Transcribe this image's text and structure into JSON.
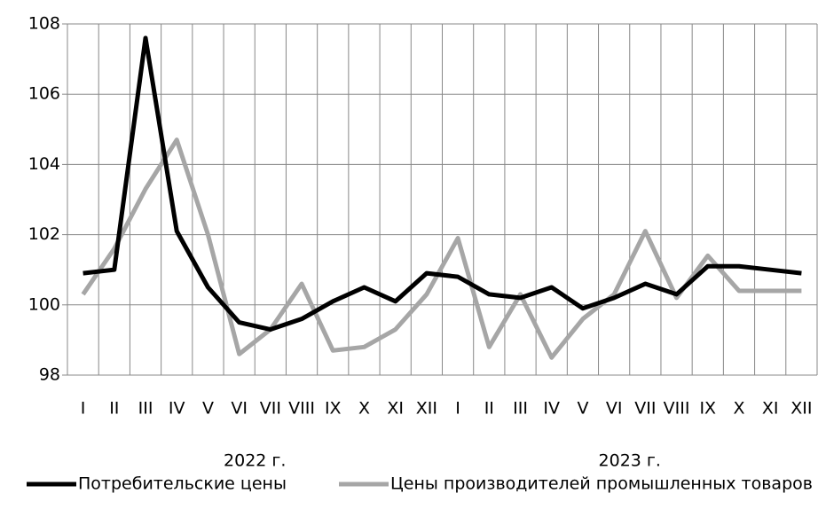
{
  "chart_data": {
    "type": "line",
    "categories": [
      "I",
      "II",
      "III",
      "IV",
      "V",
      "VI",
      "VII",
      "VIII",
      "IX",
      "X",
      "XI",
      "XII",
      "I",
      "II",
      "III",
      "IV",
      "V",
      "VI",
      "VII",
      "VIII",
      "IX",
      "X",
      "XI",
      "XII"
    ],
    "groups": [
      "2022 г.",
      "2023 г."
    ],
    "series": [
      {
        "name": "Потребительские цены",
        "color": "#000000",
        "values": [
          100.9,
          101.0,
          107.6,
          102.1,
          100.5,
          99.5,
          99.3,
          99.6,
          100.1,
          100.5,
          100.1,
          100.9,
          100.8,
          100.3,
          100.2,
          100.5,
          99.9,
          100.2,
          100.6,
          100.3,
          101.1,
          101.1,
          101.0,
          100.9
        ]
      },
      {
        "name": "Цены производителей промышленных товаров",
        "color": "#a6a6a6",
        "values": [
          100.3,
          101.6,
          103.3,
          104.7,
          102.0,
          98.6,
          99.3,
          100.6,
          98.7,
          98.8,
          99.3,
          100.3,
          101.9,
          98.8,
          100.3,
          98.5,
          99.6,
          100.3,
          102.1,
          100.2,
          101.4,
          100.4,
          100.4,
          100.4
        ]
      }
    ],
    "ylim": [
      98,
      108
    ],
    "yticks": [
      98,
      100,
      102,
      104,
      106,
      108
    ],
    "grid": true,
    "legend": "bottom"
  }
}
